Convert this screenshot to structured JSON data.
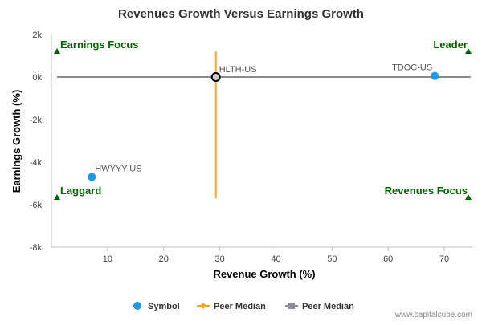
{
  "chart_data": {
    "type": "scatter",
    "title": "Revenues Growth Versus Earnings Growth",
    "xlabel": "Revenue Growth (%)",
    "ylabel": "Earnings Growth (%)",
    "xlim": [
      0,
      75
    ],
    "ylim": [
      -8000,
      2000
    ],
    "xticks": [
      10,
      20,
      30,
      40,
      50,
      60,
      70
    ],
    "xtick_labels": [
      "10",
      "20",
      "30",
      "40",
      "50",
      "60",
      "70"
    ],
    "yticks": [
      2000,
      0,
      -2000,
      -4000,
      -6000,
      -8000
    ],
    "ytick_labels": [
      "2k",
      "0k",
      "-2k",
      "-4k",
      "-6k",
      "-8k"
    ],
    "grid": false,
    "points": [
      {
        "label": "HLTH-US",
        "x": 29.3,
        "y": 0,
        "highlight": true
      },
      {
        "label": "TDOC-US",
        "x": 68.3,
        "y": 50,
        "highlight": false
      },
      {
        "label": "HWYYY-US",
        "x": 7.2,
        "y": -4700,
        "highlight": false
      }
    ],
    "peer_median_revenue": {
      "x": 29.3,
      "y_range": [
        -5700,
        1200
      ]
    },
    "peer_median_earnings": {
      "y": 0,
      "x_range": [
        0,
        75
      ]
    },
    "quadrants": [
      {
        "label": "Earnings Focus",
        "position": "top-left"
      },
      {
        "label": "Leader",
        "position": "top-right"
      },
      {
        "label": "Laggard",
        "position": "bottom-left"
      },
      {
        "label": "Revenues Focus",
        "position": "bottom-right"
      }
    ],
    "legend": {
      "placement": "bottom",
      "entries": [
        {
          "name": "Symbol",
          "kind": "point",
          "color": "#1a9ae8"
        },
        {
          "name": "Peer Median",
          "kind": "vline",
          "color": "#f5a623"
        },
        {
          "name": "Peer Median",
          "kind": "hline",
          "color": "#8c8c99"
        }
      ]
    },
    "colors": {
      "symbol": "#1a9ae8",
      "peer_median_revenue": "#f5a623",
      "peer_median_earnings": "#8c8c99",
      "quadrant_label": "#006400",
      "highlight_fill": "#cccccc"
    }
  },
  "credit": "www.capitalcube.com"
}
